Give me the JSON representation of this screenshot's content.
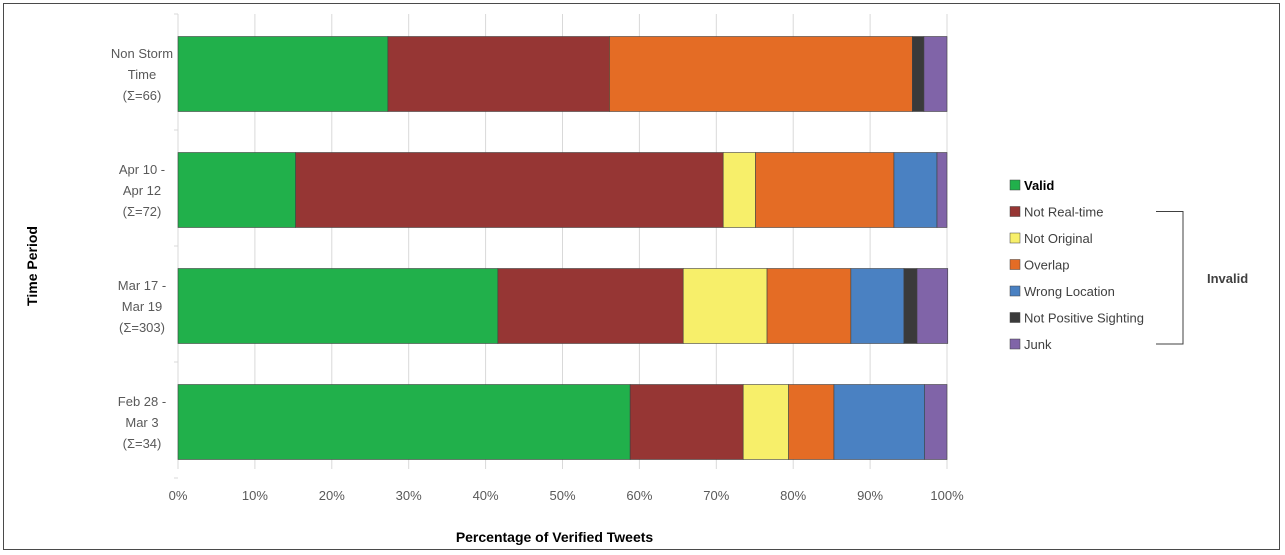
{
  "chart_data": {
    "type": "bar",
    "orientation": "horizontal",
    "stacked": true,
    "normalized": true,
    "xlabel": "Percentage of Verified Tweets",
    "ylabel": "Time Period",
    "xlim": [
      0,
      100
    ],
    "x_ticks": [
      "0%",
      "10%",
      "20%",
      "30%",
      "40%",
      "50%",
      "60%",
      "70%",
      "80%",
      "90%",
      "100%"
    ],
    "grid": "vertical",
    "legend_position": "right",
    "legend_group": {
      "label": "Invalid",
      "members": [
        "Not Real-time",
        "Not Original",
        "Overlap",
        "Wrong Location",
        "Not Positive Sighting",
        "Junk"
      ]
    },
    "categories": [
      {
        "lines": [
          "Non Storm",
          "Time",
          "(Σ=66)"
        ]
      },
      {
        "lines": [
          "Apr 10 -",
          "Apr 12",
          "(Σ=72)"
        ]
      },
      {
        "lines": [
          "Mar 17 -",
          "Mar 19",
          "(Σ=303)"
        ]
      },
      {
        "lines": [
          "Feb 28 -",
          "Mar 3",
          "(Σ=34)"
        ]
      }
    ],
    "series": [
      {
        "name": "Valid",
        "color": "#21b04b",
        "values": [
          27.3,
          15.3,
          41.6,
          58.8
        ]
      },
      {
        "name": "Not Real-time",
        "color": "#963634",
        "values": [
          28.8,
          55.6,
          24.1,
          14.7
        ]
      },
      {
        "name": "Not Original",
        "color": "#f7ef6a",
        "values": [
          0,
          4.2,
          10.9,
          5.9
        ]
      },
      {
        "name": "Overlap",
        "color": "#e46c25",
        "values": [
          39.4,
          18.0,
          10.9,
          5.9
        ]
      },
      {
        "name": "Wrong Location",
        "color": "#4a81c2",
        "values": [
          0,
          5.6,
          6.9,
          11.8
        ]
      },
      {
        "name": "Not Positive Sighting",
        "color": "#3a3a3a",
        "values": [
          1.5,
          0,
          1.7,
          0
        ]
      },
      {
        "name": "Junk",
        "color": "#8064a8",
        "values": [
          3.0,
          1.3,
          4.0,
          2.9
        ]
      }
    ]
  }
}
